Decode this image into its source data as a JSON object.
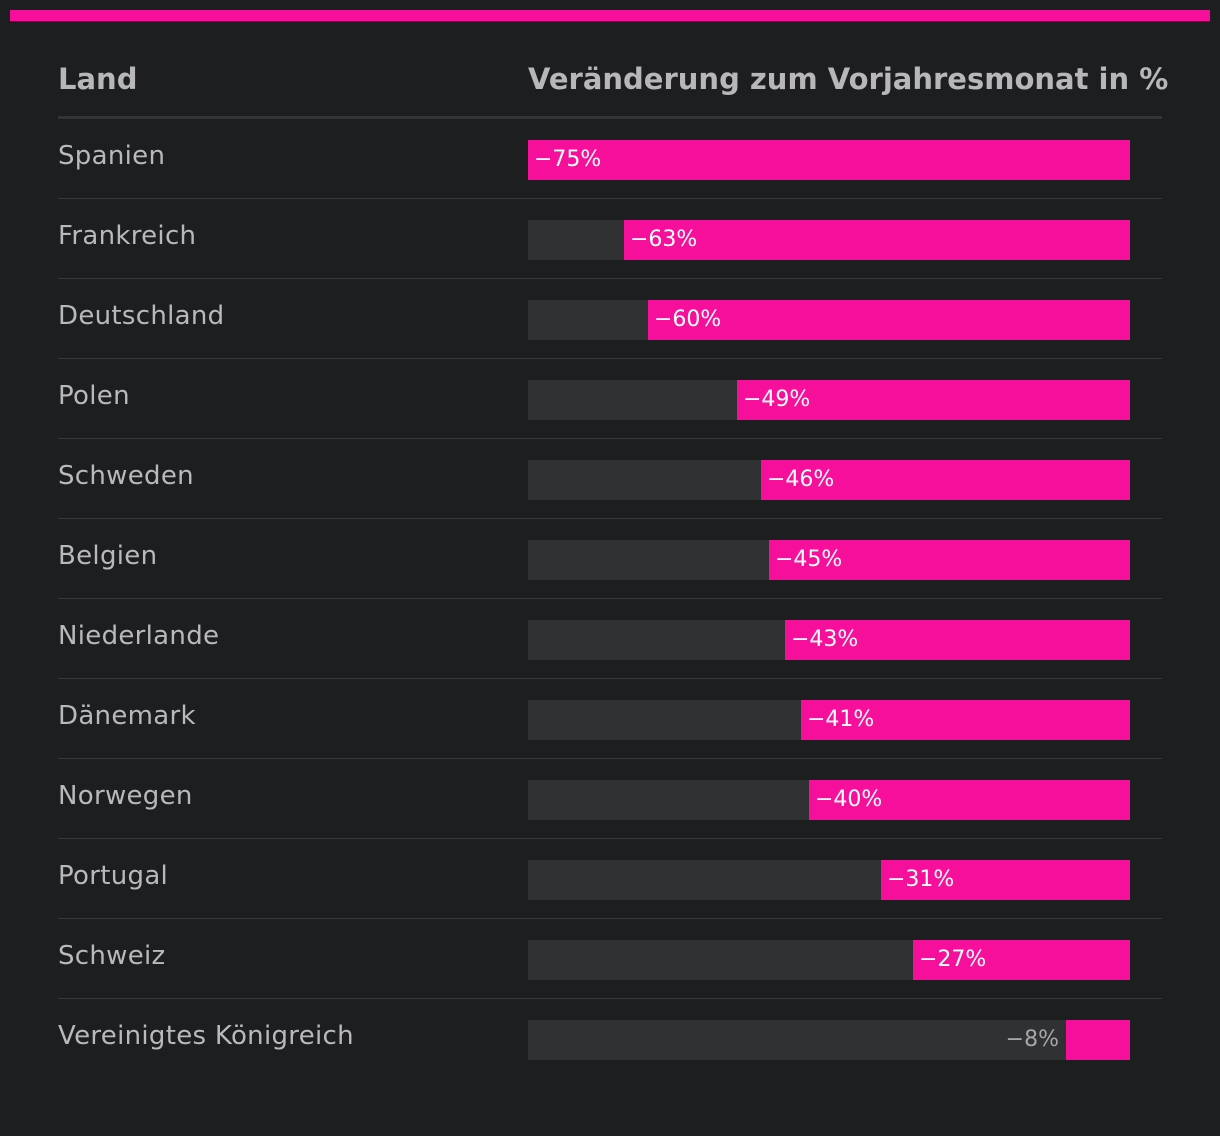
{
  "chart_data": {
    "type": "bar",
    "orientation": "horizontal",
    "headers": {
      "category": "Land",
      "value": "Veränderung zum Vorjahresmonat in %"
    },
    "categories": [
      "Spanien",
      "Frankreich",
      "Deutschland",
      "Polen",
      "Schweden",
      "Belgien",
      "Niederlande",
      "Dänemark",
      "Norwegen",
      "Portugal",
      "Schweiz",
      "Vereinigtes Königreich"
    ],
    "values": [
      -75,
      -63,
      -60,
      -49,
      -46,
      -45,
      -43,
      -41,
      -40,
      -31,
      -27,
      -8
    ],
    "labels": [
      "−75%",
      "−63%",
      "−60%",
      "−49%",
      "−46%",
      "−45%",
      "−43%",
      "−41%",
      "−40%",
      "−31%",
      "−27%",
      "−8%"
    ],
    "xlim": [
      -75,
      0
    ],
    "bar_color": "#f50f9a",
    "track_color": "#303133"
  }
}
